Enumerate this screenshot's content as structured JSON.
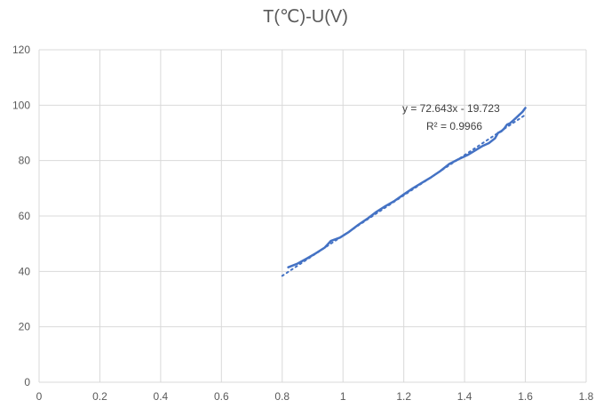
{
  "chart_data": {
    "type": "scatter",
    "title": "T(℃)-U(V)",
    "xlim": [
      0,
      1.8
    ],
    "ylim": [
      0,
      120
    ],
    "x_ticks": [
      "0",
      "0.2",
      "0.4",
      "0.6",
      "0.8",
      "1",
      "1.2",
      "1.4",
      "1.6",
      "1.8"
    ],
    "y_ticks": [
      "0",
      "20",
      "40",
      "60",
      "80",
      "100",
      "120"
    ],
    "grid": true,
    "series": [
      {
        "x": [
          0.82,
          0.85,
          0.88,
          0.91,
          0.94,
          0.96,
          0.99,
          1.02,
          1.05,
          1.08,
          1.11,
          1.14,
          1.17,
          1.2,
          1.23,
          1.26,
          1.29,
          1.32,
          1.35,
          1.38,
          1.41,
          1.44,
          1.46,
          1.48,
          1.5,
          1.51,
          1.52,
          1.53,
          1.54,
          1.55,
          1.56,
          1.57,
          1.58,
          1.59,
          1.6
        ],
        "y": [
          41.5,
          42.8,
          44.6,
          46.5,
          48.6,
          51.0,
          52.2,
          54.3,
          56.8,
          59.0,
          61.5,
          63.6,
          65.5,
          67.8,
          70.0,
          72.0,
          74.0,
          76.2,
          78.8,
          80.5,
          82.0,
          84.0,
          85.3,
          86.3,
          88.0,
          90.0,
          90.5,
          91.5,
          93.0,
          93.5,
          94.5,
          95.5,
          96.5,
          97.5,
          99.0
        ]
      }
    ],
    "trendline": {
      "slope": 72.643,
      "intercept": -19.723,
      "x_range": [
        0.8,
        1.6
      ],
      "equation": "y = 72.643x - 19.723",
      "r2": "R² = 0.9966"
    },
    "colors": {
      "series": "#4472c4",
      "grid": "#d9d9d9",
      "text": "#595959"
    }
  }
}
